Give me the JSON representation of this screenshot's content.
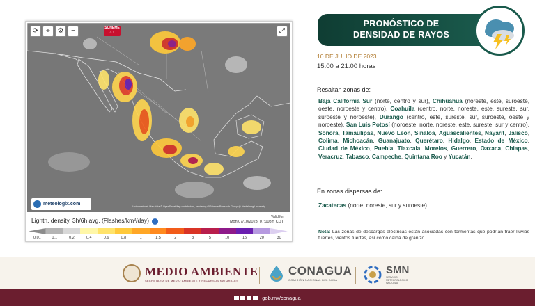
{
  "header": {
    "title_line1": "PRONÓSTICO DE",
    "title_line2": "DENSIDAD DE RAYOS",
    "icon": "storm-cloud-lightning-icon"
  },
  "forecast": {
    "date": "10 DE JULIO DE 2023",
    "hours": "15:00 a 21:00 horas",
    "highlight_heading": "Resaltan zonas de:",
    "regions": [
      {
        "state": "Baja California Sur",
        "detail": " (norte, centro y sur), "
      },
      {
        "state": "Chihuahua",
        "detail": " (noreste, este, suroeste, oeste, noroeste y centro), "
      },
      {
        "state": "Coahuila",
        "detail": " (centro, norte, noreste, este, sureste, sur, suroeste y noroeste), "
      },
      {
        "state": "Durango",
        "detail": " (centro, este, sureste, sur, suroeste, oeste y noroeste), "
      },
      {
        "state": "San Luis Potosí",
        "detail": " (noroeste, norte, noreste, este, sureste, sur y centro), "
      },
      {
        "state": "Sonora",
        "detail": ", "
      },
      {
        "state": "Tamaulipas",
        "detail": ", "
      },
      {
        "state": "Nuevo León",
        "detail": ", "
      },
      {
        "state": "Sinaloa",
        "detail": ", "
      },
      {
        "state": "Aguascalientes",
        "detail": ", "
      },
      {
        "state": "Nayarit",
        "detail": ", "
      },
      {
        "state": "Jalisco",
        "detail": ", "
      },
      {
        "state": "Colima",
        "detail": ", "
      },
      {
        "state": "Michoacán",
        "detail": ", "
      },
      {
        "state": "Guanajuato",
        "detail": ", "
      },
      {
        "state": "Querétaro",
        "detail": ", "
      },
      {
        "state": "Hidalgo",
        "detail": ", "
      },
      {
        "state": "Estado de México",
        "detail": ", "
      },
      {
        "state": "Ciudad de México",
        "detail": ", "
      },
      {
        "state": "Puebla",
        "detail": ", "
      },
      {
        "state": "Tlaxcala",
        "detail": ", "
      },
      {
        "state": "Morelos",
        "detail": ", "
      },
      {
        "state": "Guerrero",
        "detail": ", "
      },
      {
        "state": "Oaxaca",
        "detail": ", "
      },
      {
        "state": "Chiapas",
        "detail": ", "
      },
      {
        "state": "Veracruz",
        "detail": ", "
      },
      {
        "state": "Tabasco",
        "detail": ", "
      },
      {
        "state": "Campeche",
        "detail": ", "
      },
      {
        "state": "Quintana Roo",
        "detail": " y "
      },
      {
        "state": "Yucatán",
        "detail": "."
      }
    ],
    "scattered_heading": "En zonas dispersas de:",
    "scattered": [
      {
        "state": "Zacatecas",
        "detail": " (norte, noreste, sur y suroeste)."
      }
    ],
    "note_label": "Nota:",
    "note_text": " Las zonas de descargas eléctricas están asociadas con tormentas que podrían traer lluvias fuertes, vientos fuertes, así como caída de granizo."
  },
  "map": {
    "toolbar_icons": [
      "refresh-icon",
      "location-pin-icon",
      "settings-icon",
      "minus-icon"
    ],
    "badge": "SCHEME 3 1",
    "brand": "meteologix.com",
    "attribution": "Kartenmaterial: Map data © OpenStreetMap contributors, rendering GIScience Research Group @ Heidelberg University",
    "legend_title": "Lightn. density, 3h/6h avg. (Flashes/km²/day)",
    "valid_label": "Valid for",
    "valid_date": "Mon 07/10/2023, 07:00pm CDT",
    "scale_labels": [
      "0.01",
      "0.1",
      "0.2",
      "0.4",
      "0.6",
      "0.8",
      "1",
      "1.5",
      "2",
      "3",
      "5",
      "10",
      "15",
      "20",
      "30"
    ],
    "scale_colors": [
      "#8c8c8c",
      "#b4b4b4",
      "#d8d8d8",
      "#fff7a8",
      "#ffe36b",
      "#ffc93b",
      "#ffa726",
      "#ff8a1f",
      "#f25c1a",
      "#d93426",
      "#b81e4c",
      "#8e1a8a",
      "#6a1fb0",
      "#b69ae0",
      "#dccff0"
    ]
  },
  "footer": {
    "ma_title": "MEDIO AMBIENTE",
    "ma_sub": "SECRETARÍA DE MEDIO AMBIENTE Y RECURSOS NATURALES",
    "conagua_title": "CONAGUA",
    "conagua_sub": "COMISIÓN NACIONAL DEL AGUA",
    "smn_title": "SMN",
    "smn_sub1": "SERVICIO",
    "smn_sub2": "METEOROLÓGICO",
    "smn_sub3": "NACIONAL",
    "website": "gob.mx/conagua"
  }
}
